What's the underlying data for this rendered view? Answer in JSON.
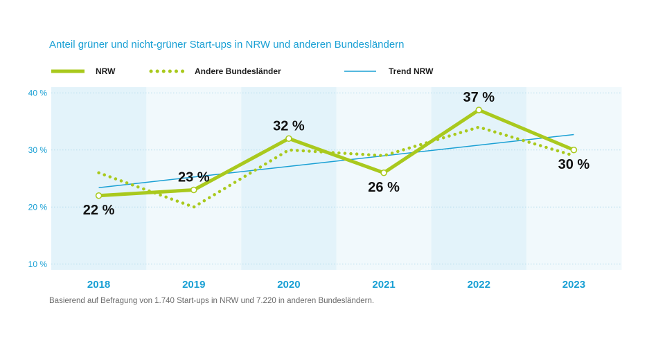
{
  "title": "Anteil grüner und nicht-grüner Start-ups in NRW und anderen Bundesländern",
  "legend": {
    "nrw": "NRW",
    "andere": "Andere Bundesländer",
    "trend": "Trend NRW"
  },
  "note": "Basierend auf Befragung von 1.740 Start-ups in NRW und 7.220 in anderen Bundesländern.",
  "colors": {
    "nrw": "#a9c91d",
    "andere": "#a9c91d",
    "trend": "#1aa0d4",
    "band_dark": "#e3f3fa",
    "band_light": "#f1f9fc",
    "text_blue": "#1aa0d4"
  },
  "chart_data": {
    "type": "line",
    "title": "Anteil grüner und nicht-grüner Start-ups in NRW und anderen Bundesländern",
    "x": [
      "2018",
      "2019",
      "2020",
      "2021",
      "2022",
      "2023"
    ],
    "yticks": [
      "10 %",
      "20 %",
      "30 %",
      "40 %"
    ],
    "ylim": [
      9,
      41
    ],
    "grid": true,
    "legend_position": "top",
    "series": [
      {
        "name": "NRW",
        "values": [
          22,
          23,
          32,
          26,
          37,
          30
        ],
        "labels": [
          "22 %",
          "23 %",
          "32 %",
          "26 %",
          "37 %",
          "30 %"
        ]
      },
      {
        "name": "Andere Bundesländer",
        "values": [
          26,
          20,
          30,
          29,
          34,
          29
        ]
      },
      {
        "name": "Trend NRW",
        "values": [
          23.4,
          25.3,
          27.1,
          29.0,
          30.9,
          32.7
        ]
      }
    ]
  }
}
